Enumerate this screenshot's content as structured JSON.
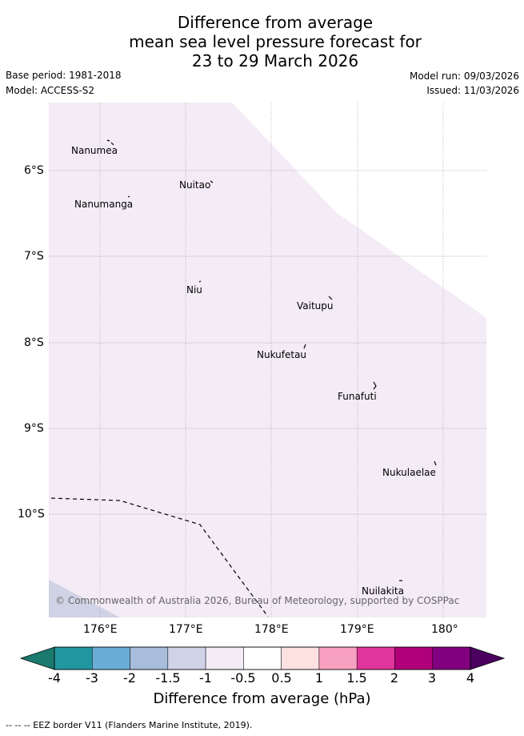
{
  "title": {
    "line1": "Difference from average",
    "line2": "mean sea level pressure forecast for",
    "line3": "23 to 29 March 2026"
  },
  "meta": {
    "base_period": "Base period: 1981-2018",
    "model": "Model: ACCESS-S2",
    "model_run": "Model run: 09/03/2026",
    "issued": "Issued: 11/03/2026"
  },
  "map": {
    "extent": {
      "lon_min": 175.5,
      "lon_max": 180.5,
      "lat_min": -11.2,
      "lat_max": -5.2
    },
    "colors": {
      "main_fill": "#f3ebf5",
      "light_blue_fill": "#d0d2e6",
      "grid": "#888888",
      "eez_line": "#000000"
    },
    "lat_labels": [
      "6°S",
      "7°S",
      "8°S",
      "9°S",
      "10°S"
    ],
    "lon_labels": [
      "176°E",
      "177°E",
      "178°E",
      "179°E",
      "180°"
    ],
    "places": [
      {
        "name": "Nanumea",
        "lon": 176.12,
        "lat": -5.67
      },
      {
        "name": "Nuitao",
        "lon": 177.3,
        "lat": -6.12
      },
      {
        "name": "Nanumanga",
        "lon": 176.33,
        "lat": -6.29
      },
      {
        "name": "Niu",
        "lon": 177.15,
        "lat": -7.29
      },
      {
        "name": "Vaitupu",
        "lon": 178.67,
        "lat": -7.48
      },
      {
        "name": "Nukufetau",
        "lon": 178.38,
        "lat": -8.02
      },
      {
        "name": "Funafuti",
        "lon": 179.2,
        "lat": -8.52
      },
      {
        "name": "Nukulaelae",
        "lon": 179.85,
        "lat": -9.38
      },
      {
        "name": "Nuilakita",
        "lon": 179.52,
        "lat": -10.77
      }
    ],
    "credit": "© Commonwealth of Australia 2026, Bureau of Meteorology, supported by COSPPac"
  },
  "colorbar": {
    "title": "Difference from average (hPa)",
    "ticks": [
      "-4",
      "-3",
      "-2",
      "-1.5",
      "-1",
      "-0.5",
      "0.5",
      "1",
      "1.5",
      "2",
      "3",
      "4"
    ],
    "colors": [
      "#1a7a6e",
      "#2196a0",
      "#6aaed6",
      "#a8bcdc",
      "#d0d2e6",
      "#f3ebf5",
      "#ffffff",
      "#fde0e0",
      "#f8a0c0",
      "#e0359a",
      "#b0007a",
      "#800080",
      "#4b0060"
    ]
  },
  "footnote": "-- -- -- EEZ border V11 (Flanders Marine Institute, 2019)."
}
